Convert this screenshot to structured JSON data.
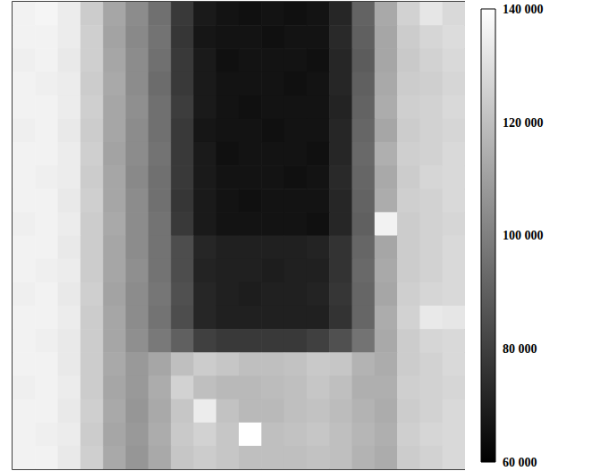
{
  "chart_data": {
    "type": "heatmap",
    "tick_labels": false,
    "cells": [
      [
        136000,
        137000,
        134000,
        124000,
        112000,
        104000,
        95000,
        78000,
        68000,
        66000,
        65000,
        66000,
        65000,
        66000,
        72000,
        91000,
        113000,
        126000,
        132000,
        128000
      ],
      [
        136000,
        136000,
        134000,
        125000,
        111000,
        103000,
        96000,
        77000,
        67000,
        66000,
        66000,
        65000,
        66000,
        66000,
        73000,
        90000,
        112000,
        124000,
        127000,
        129000
      ],
      [
        135000,
        136000,
        133000,
        125000,
        112000,
        104000,
        95000,
        78000,
        68000,
        65000,
        66000,
        66000,
        66000,
        65000,
        72000,
        89000,
        112000,
        123000,
        126000,
        128000
      ],
      [
        136000,
        135000,
        134000,
        124000,
        113000,
        104000,
        94000,
        78000,
        68000,
        66000,
        66000,
        66000,
        65000,
        66000,
        72000,
        90000,
        113000,
        124000,
        125000,
        127000
      ],
      [
        136000,
        136000,
        134000,
        125000,
        112000,
        105000,
        95000,
        79000,
        68000,
        66000,
        65000,
        66000,
        66000,
        66000,
        71000,
        91000,
        114000,
        125000,
        126000,
        128000
      ],
      [
        135000,
        136000,
        133000,
        124000,
        112000,
        104000,
        95000,
        78000,
        67000,
        66000,
        66000,
        65000,
        66000,
        66000,
        72000,
        92000,
        112000,
        124000,
        126000,
        127000
      ],
      [
        136000,
        136000,
        134000,
        125000,
        111000,
        104000,
        96000,
        78000,
        68000,
        65000,
        66000,
        66000,
        66000,
        65000,
        72000,
        93000,
        115000,
        125000,
        126000,
        128000
      ],
      [
        136000,
        135000,
        134000,
        124000,
        112000,
        103000,
        95000,
        78000,
        68000,
        66000,
        66000,
        66000,
        65000,
        66000,
        73000,
        92000,
        113000,
        124000,
        127000,
        128000
      ],
      [
        136000,
        136000,
        133000,
        125000,
        112000,
        104000,
        95000,
        77000,
        68000,
        66000,
        65000,
        66000,
        66000,
        66000,
        72000,
        91000,
        114000,
        125000,
        126000,
        128000
      ],
      [
        135000,
        136000,
        134000,
        124000,
        113000,
        104000,
        96000,
        78000,
        68000,
        66000,
        66000,
        66000,
        66000,
        65000,
        72000,
        90000,
        136000,
        124000,
        126000,
        127000
      ],
      [
        136000,
        136000,
        133000,
        124000,
        112000,
        104000,
        96000,
        84000,
        72000,
        70000,
        70000,
        70000,
        70000,
        71000,
        76000,
        92000,
        112000,
        124000,
        126000,
        128000
      ],
      [
        136000,
        135000,
        134000,
        124000,
        112000,
        105000,
        96000,
        84000,
        71000,
        70000,
        70000,
        69000,
        70000,
        70000,
        76000,
        93000,
        113000,
        124000,
        126000,
        128000
      ],
      [
        135000,
        136000,
        133000,
        125000,
        111000,
        104000,
        97000,
        85000,
        72000,
        70000,
        69000,
        70000,
        70000,
        71000,
        77000,
        92000,
        112000,
        125000,
        127000,
        128000
      ],
      [
        136000,
        136000,
        134000,
        124000,
        112000,
        104000,
        96000,
        84000,
        72000,
        70000,
        70000,
        70000,
        70000,
        70000,
        76000,
        92000,
        114000,
        126000,
        133000,
        132000
      ],
      [
        136000,
        135000,
        133000,
        124000,
        112000,
        105000,
        98000,
        90000,
        80000,
        78000,
        78000,
        78000,
        78000,
        80000,
        85000,
        96000,
        113000,
        124000,
        127000,
        128000
      ],
      [
        136000,
        136000,
        133000,
        124000,
        113000,
        108000,
        112000,
        120000,
        124000,
        122000,
        120000,
        120000,
        121000,
        123000,
        122000,
        116000,
        114000,
        124000,
        126000,
        128000
      ],
      [
        135000,
        136000,
        134000,
        124000,
        112000,
        108000,
        114000,
        126000,
        120000,
        118000,
        118000,
        119000,
        120000,
        122000,
        120000,
        115000,
        115000,
        125000,
        126000,
        127000
      ],
      [
        136000,
        136000,
        133000,
        125000,
        113000,
        107000,
        113000,
        122000,
        134000,
        121000,
        118000,
        118000,
        120000,
        121000,
        119000,
        116000,
        114000,
        124000,
        126000,
        128000
      ],
      [
        136000,
        135000,
        134000,
        124000,
        112000,
        108000,
        114000,
        123000,
        126000,
        122000,
        140000,
        120000,
        121000,
        122000,
        120000,
        117000,
        115000,
        125000,
        127000,
        128000
      ],
      [
        136000,
        136000,
        133000,
        125000,
        113000,
        107000,
        113000,
        122000,
        124000,
        122000,
        120000,
        120000,
        120000,
        121000,
        120000,
        116000,
        114000,
        124000,
        126000,
        128000
      ]
    ],
    "colorbar_range": [
      60000,
      140000
    ],
    "colorbar_ticks": [
      {
        "value": 60000,
        "label": "60 000"
      },
      {
        "value": 80000,
        "label": "80 000"
      },
      {
        "value": 100000,
        "label": "100 000"
      },
      {
        "value": 120000,
        "label": "120 000"
      },
      {
        "value": 140000,
        "label": "140 000"
      }
    ]
  }
}
